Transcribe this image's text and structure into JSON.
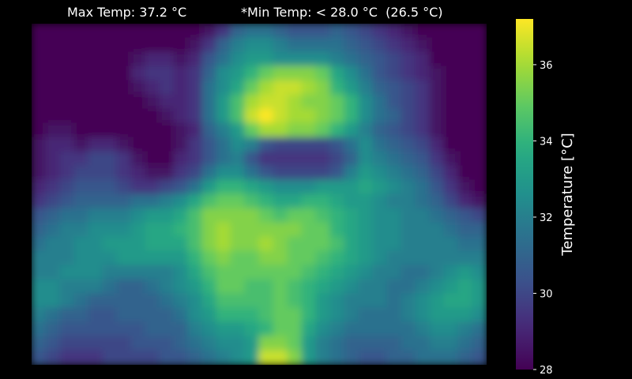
{
  "chart_data": {
    "type": "heatmap",
    "title_max": "Max Temp: 37.2 °C",
    "title_min": "*Min Temp: < 28.0 °C  (26.5 °C)",
    "colorbar": {
      "label": "Temperature [$^\\circ$C]",
      "label_display": "Temperature [°C]",
      "range": [
        28,
        37.2
      ],
      "ticks": [
        28,
        30,
        32,
        34,
        36
      ],
      "colormap": "viridis"
    },
    "grid_cols": 32,
    "grid_rows": 24,
    "values": [
      [
        28.0,
        28.0,
        28.0,
        28.0,
        28.0,
        28.0,
        28.0,
        28.0,
        28.0,
        28.0,
        28.0,
        28.0,
        28.5,
        29.5,
        31.0,
        31.5,
        31.5,
        31.0,
        30.5,
        30.5,
        30.5,
        31.0,
        30.5,
        30.0,
        29.5,
        29.0,
        28.5,
        28.0,
        28.0,
        28.0,
        28.0,
        28.0
      ],
      [
        28.0,
        28.0,
        28.0,
        28.0,
        28.0,
        28.0,
        28.0,
        28.0,
        28.0,
        28.0,
        28.0,
        28.5,
        29.5,
        31.0,
        32.0,
        32.5,
        32.5,
        32.0,
        31.5,
        31.5,
        31.5,
        31.5,
        31.0,
        30.5,
        30.0,
        29.5,
        29.0,
        28.5,
        28.0,
        28.0,
        28.0,
        28.0
      ],
      [
        28.0,
        28.0,
        28.0,
        28.0,
        28.0,
        28.0,
        28.0,
        28.5,
        29.0,
        29.0,
        28.5,
        29.0,
        30.5,
        31.5,
        32.5,
        33.0,
        33.0,
        32.5,
        32.5,
        32.5,
        32.5,
        32.0,
        31.5,
        31.0,
        30.5,
        30.0,
        29.5,
        29.0,
        28.0,
        28.0,
        28.0,
        28.0
      ],
      [
        28.0,
        28.0,
        28.0,
        28.0,
        28.0,
        28.0,
        28.0,
        29.0,
        29.5,
        29.5,
        29.0,
        29.5,
        31.0,
        32.5,
        33.0,
        34.0,
        35.0,
        35.5,
        35.5,
        35.5,
        35.0,
        33.5,
        32.5,
        31.5,
        30.5,
        30.0,
        29.5,
        29.0,
        28.5,
        28.0,
        28.0,
        28.0
      ],
      [
        28.0,
        28.0,
        28.0,
        28.0,
        28.0,
        28.0,
        28.0,
        28.5,
        29.0,
        29.5,
        29.0,
        29.5,
        31.5,
        32.5,
        33.5,
        35.0,
        36.0,
        36.5,
        36.5,
        36.0,
        35.5,
        34.0,
        33.0,
        32.0,
        31.0,
        30.5,
        30.0,
        29.5,
        28.5,
        28.0,
        28.0,
        28.0
      ],
      [
        28.0,
        28.0,
        28.0,
        28.0,
        28.0,
        28.0,
        28.0,
        28.0,
        28.5,
        29.0,
        29.0,
        29.5,
        31.5,
        33.0,
        34.5,
        36.0,
        36.5,
        36.5,
        36.0,
        35.5,
        35.5,
        35.0,
        34.0,
        32.5,
        31.5,
        30.5,
        30.0,
        29.5,
        28.5,
        28.0,
        28.0,
        28.0
      ],
      [
        28.0,
        28.0,
        28.0,
        28.0,
        28.0,
        28.0,
        28.0,
        28.0,
        28.0,
        28.5,
        29.0,
        29.5,
        31.5,
        33.0,
        34.5,
        36.5,
        37.2,
        36.5,
        36.0,
        36.0,
        35.5,
        35.0,
        34.0,
        32.5,
        31.5,
        31.0,
        30.0,
        29.5,
        28.5,
        28.0,
        28.0,
        28.0
      ],
      [
        28.0,
        28.5,
        28.5,
        28.0,
        28.0,
        28.0,
        28.0,
        28.0,
        28.0,
        28.0,
        28.5,
        29.0,
        31.0,
        32.0,
        33.0,
        35.0,
        36.0,
        36.0,
        35.5,
        35.5,
        35.0,
        34.0,
        33.0,
        32.0,
        31.0,
        30.5,
        30.0,
        29.5,
        28.5,
        28.0,
        28.0,
        28.0
      ],
      [
        28.5,
        29.0,
        29.0,
        28.5,
        29.0,
        29.0,
        28.5,
        28.0,
        28.0,
        28.0,
        28.5,
        29.5,
        30.5,
        31.5,
        32.5,
        32.0,
        30.5,
        30.0,
        30.0,
        30.0,
        30.0,
        30.5,
        31.5,
        32.5,
        31.5,
        31.0,
        30.5,
        30.0,
        29.0,
        28.0,
        28.0,
        28.0
      ],
      [
        28.5,
        29.0,
        29.5,
        29.5,
        30.0,
        30.0,
        29.5,
        28.5,
        28.0,
        28.0,
        29.0,
        29.5,
        30.5,
        31.5,
        32.0,
        30.5,
        29.5,
        29.5,
        29.5,
        29.5,
        29.5,
        30.0,
        31.0,
        32.5,
        32.0,
        31.5,
        31.0,
        30.5,
        29.5,
        28.5,
        28.0,
        28.0
      ],
      [
        28.5,
        29.0,
        29.5,
        30.0,
        30.0,
        30.0,
        29.5,
        29.0,
        28.5,
        28.5,
        29.5,
        30.0,
        31.5,
        32.5,
        32.5,
        31.5,
        30.5,
        30.0,
        30.0,
        30.0,
        30.0,
        30.5,
        32.0,
        33.0,
        32.5,
        32.0,
        31.5,
        31.0,
        30.0,
        29.0,
        28.0,
        28.0
      ],
      [
        29.0,
        29.5,
        30.0,
        30.5,
        30.5,
        30.5,
        30.0,
        29.5,
        29.5,
        30.0,
        30.5,
        31.5,
        33.0,
        34.0,
        34.0,
        33.5,
        33.0,
        32.5,
        32.5,
        32.5,
        33.0,
        33.0,
        33.0,
        33.5,
        33.0,
        32.5,
        32.0,
        31.5,
        30.5,
        29.5,
        28.5,
        28.0
      ],
      [
        29.5,
        30.0,
        30.5,
        31.0,
        31.0,
        31.0,
        31.0,
        31.5,
        31.5,
        32.0,
        32.5,
        33.5,
        34.5,
        35.0,
        35.0,
        34.5,
        34.0,
        33.5,
        33.5,
        34.0,
        34.0,
        33.5,
        33.0,
        33.0,
        32.5,
        32.0,
        32.0,
        31.5,
        31.0,
        30.0,
        29.0,
        28.5
      ],
      [
        30.5,
        31.0,
        31.5,
        31.5,
        32.0,
        32.0,
        32.0,
        32.5,
        33.0,
        33.0,
        33.5,
        34.5,
        35.5,
        35.5,
        35.5,
        35.5,
        35.0,
        34.5,
        35.0,
        35.0,
        34.5,
        34.0,
        33.5,
        33.0,
        32.5,
        32.5,
        32.0,
        32.0,
        31.5,
        31.0,
        30.5,
        30.0
      ],
      [
        31.0,
        31.5,
        32.0,
        32.0,
        32.5,
        32.5,
        32.5,
        33.0,
        33.5,
        33.5,
        34.0,
        34.5,
        35.5,
        36.0,
        35.5,
        35.5,
        35.5,
        35.5,
        35.5,
        35.0,
        35.0,
        34.0,
        33.5,
        33.0,
        32.5,
        32.5,
        32.0,
        32.0,
        32.0,
        31.5,
        31.0,
        31.0
      ],
      [
        31.5,
        32.0,
        32.0,
        32.5,
        32.5,
        33.0,
        33.0,
        33.0,
        33.5,
        33.5,
        33.5,
        34.5,
        35.5,
        36.0,
        35.5,
        35.5,
        36.0,
        35.5,
        35.0,
        35.0,
        35.0,
        34.5,
        33.5,
        33.0,
        32.5,
        32.5,
        32.0,
        32.0,
        32.0,
        32.0,
        31.5,
        31.5
      ],
      [
        32.0,
        32.0,
        32.0,
        32.5,
        32.5,
        32.5,
        33.0,
        33.0,
        33.0,
        33.0,
        33.0,
        34.0,
        35.0,
        35.5,
        35.0,
        35.0,
        35.5,
        35.5,
        35.0,
        35.0,
        34.5,
        34.0,
        33.5,
        33.0,
        32.5,
        32.0,
        32.0,
        32.0,
        32.0,
        32.0,
        32.0,
        32.0
      ],
      [
        32.0,
        32.0,
        32.5,
        32.5,
        32.5,
        32.0,
        32.0,
        32.0,
        32.0,
        32.0,
        32.5,
        33.5,
        34.5,
        35.0,
        35.0,
        35.0,
        35.0,
        35.0,
        35.0,
        34.5,
        34.0,
        33.5,
        33.0,
        32.5,
        32.0,
        32.0,
        31.5,
        31.5,
        32.0,
        32.5,
        33.0,
        32.5
      ],
      [
        32.5,
        32.5,
        32.0,
        32.0,
        32.0,
        31.5,
        31.0,
        31.0,
        31.5,
        32.0,
        32.5,
        33.0,
        34.0,
        35.0,
        35.0,
        34.5,
        34.5,
        35.0,
        34.5,
        34.0,
        33.5,
        33.0,
        32.5,
        32.0,
        32.0,
        31.5,
        31.5,
        32.0,
        32.5,
        33.0,
        33.5,
        33.0
      ],
      [
        32.5,
        32.5,
        32.0,
        31.5,
        31.0,
        31.0,
        31.0,
        31.0,
        31.0,
        31.5,
        32.0,
        32.5,
        33.5,
        34.5,
        34.5,
        34.5,
        34.5,
        35.0,
        34.5,
        34.0,
        33.0,
        32.5,
        32.0,
        32.0,
        32.0,
        31.5,
        32.0,
        32.5,
        33.0,
        33.5,
        33.5,
        33.0
      ],
      [
        32.0,
        31.5,
        31.0,
        31.0,
        30.5,
        30.5,
        31.0,
        31.0,
        31.0,
        31.0,
        31.5,
        32.5,
        33.0,
        34.0,
        34.0,
        34.0,
        34.5,
        35.0,
        35.0,
        34.0,
        33.0,
        32.5,
        32.0,
        31.5,
        31.5,
        31.5,
        32.0,
        32.5,
        33.0,
        33.0,
        33.0,
        32.5
      ],
      [
        31.5,
        31.0,
        30.5,
        30.5,
        30.5,
        30.5,
        30.5,
        30.5,
        31.0,
        31.0,
        31.0,
        32.0,
        32.5,
        33.0,
        33.0,
        33.5,
        34.0,
        35.0,
        35.0,
        33.5,
        32.5,
        32.0,
        31.5,
        31.5,
        31.5,
        31.5,
        31.5,
        32.0,
        32.5,
        32.5,
        32.0,
        31.5
      ],
      [
        31.0,
        30.5,
        30.0,
        30.0,
        30.0,
        30.0,
        30.0,
        30.5,
        30.5,
        30.5,
        31.0,
        31.5,
        32.0,
        32.5,
        32.5,
        33.0,
        35.5,
        35.5,
        35.0,
        33.0,
        32.0,
        31.5,
        31.0,
        31.0,
        31.0,
        31.0,
        31.5,
        31.5,
        32.0,
        32.0,
        31.5,
        31.0
      ],
      [
        30.5,
        30.0,
        29.5,
        29.5,
        29.5,
        30.0,
        30.0,
        30.0,
        30.0,
        30.5,
        30.5,
        31.0,
        31.5,
        32.0,
        32.5,
        33.0,
        36.5,
        36.5,
        35.5,
        33.0,
        32.0,
        31.5,
        31.0,
        30.5,
        30.5,
        31.0,
        31.0,
        31.5,
        31.5,
        31.5,
        31.0,
        30.5
      ]
    ]
  }
}
